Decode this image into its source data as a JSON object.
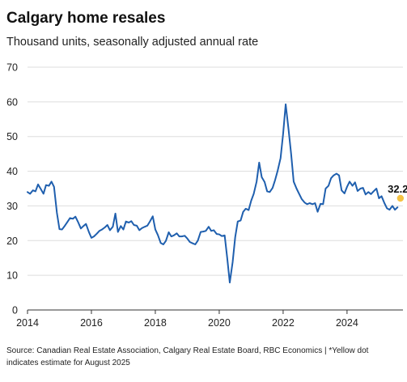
{
  "chart_data": {
    "type": "line",
    "title": "Calgary home resales",
    "subtitle": "Thousand units, seasonally adjusted annual rate",
    "xlabel": "",
    "ylabel": "",
    "xlim": [
      2014,
      2025.75
    ],
    "ylim": [
      0,
      70
    ],
    "x_ticks": [
      "2014",
      "2016",
      "2018",
      "2020",
      "2022",
      "2024"
    ],
    "y_ticks": [
      "0",
      "10",
      "20",
      "30",
      "40",
      "50",
      "60",
      "70"
    ],
    "grid": "horizontal",
    "legend": "none",
    "colors": {
      "line": "#1f5fae",
      "estimate": "#f5c242",
      "grid": "#dddddd",
      "axis": "#333333"
    },
    "series": [
      {
        "points": [
          [
            2014.0,
            34.0
          ],
          [
            2014.08,
            33.5
          ],
          [
            2014.17,
            34.5
          ],
          [
            2014.25,
            34.2
          ],
          [
            2014.33,
            36.2
          ],
          [
            2014.42,
            34.8
          ],
          [
            2014.5,
            33.5
          ],
          [
            2014.58,
            36.0
          ],
          [
            2014.67,
            35.8
          ],
          [
            2014.75,
            37.0
          ],
          [
            2014.83,
            35.5
          ],
          [
            2014.92,
            28.0
          ],
          [
            2015.0,
            23.3
          ],
          [
            2015.08,
            23.2
          ],
          [
            2015.17,
            24.3
          ],
          [
            2015.25,
            25.4
          ],
          [
            2015.33,
            26.5
          ],
          [
            2015.42,
            26.3
          ],
          [
            2015.5,
            26.9
          ],
          [
            2015.58,
            25.4
          ],
          [
            2015.67,
            23.5
          ],
          [
            2015.75,
            24.2
          ],
          [
            2015.83,
            24.8
          ],
          [
            2015.92,
            22.5
          ],
          [
            2016.0,
            20.8
          ],
          [
            2016.08,
            21.2
          ],
          [
            2016.17,
            22.0
          ],
          [
            2016.25,
            22.8
          ],
          [
            2016.33,
            23.2
          ],
          [
            2016.42,
            23.8
          ],
          [
            2016.5,
            24.5
          ],
          [
            2016.58,
            23.0
          ],
          [
            2016.67,
            24.0
          ],
          [
            2016.75,
            27.8
          ],
          [
            2016.83,
            22.5
          ],
          [
            2016.92,
            24.2
          ],
          [
            2017.0,
            23.2
          ],
          [
            2017.08,
            25.5
          ],
          [
            2017.17,
            25.2
          ],
          [
            2017.25,
            25.6
          ],
          [
            2017.33,
            24.5
          ],
          [
            2017.42,
            24.3
          ],
          [
            2017.5,
            23.0
          ],
          [
            2017.58,
            23.6
          ],
          [
            2017.67,
            24.0
          ],
          [
            2017.75,
            24.3
          ],
          [
            2017.83,
            25.5
          ],
          [
            2017.92,
            27.0
          ],
          [
            2018.0,
            23.2
          ],
          [
            2018.08,
            21.6
          ],
          [
            2018.17,
            19.3
          ],
          [
            2018.25,
            18.9
          ],
          [
            2018.33,
            19.9
          ],
          [
            2018.42,
            22.4
          ],
          [
            2018.5,
            21.2
          ],
          [
            2018.58,
            21.5
          ],
          [
            2018.67,
            22.1
          ],
          [
            2018.75,
            21.2
          ],
          [
            2018.83,
            21.2
          ],
          [
            2018.92,
            21.4
          ],
          [
            2019.0,
            20.6
          ],
          [
            2019.08,
            19.6
          ],
          [
            2019.17,
            19.2
          ],
          [
            2019.25,
            18.9
          ],
          [
            2019.33,
            20.0
          ],
          [
            2019.42,
            22.5
          ],
          [
            2019.5,
            22.6
          ],
          [
            2019.58,
            22.8
          ],
          [
            2019.67,
            24.0
          ],
          [
            2019.75,
            22.8
          ],
          [
            2019.83,
            23.0
          ],
          [
            2019.92,
            21.9
          ],
          [
            2020.0,
            21.8
          ],
          [
            2020.08,
            21.3
          ],
          [
            2020.17,
            21.5
          ],
          [
            2020.25,
            15.0
          ],
          [
            2020.33,
            7.9
          ],
          [
            2020.42,
            13.8
          ],
          [
            2020.5,
            21.0
          ],
          [
            2020.58,
            25.5
          ],
          [
            2020.67,
            25.8
          ],
          [
            2020.75,
            28.3
          ],
          [
            2020.83,
            29.2
          ],
          [
            2020.92,
            28.8
          ],
          [
            2021.0,
            31.5
          ],
          [
            2021.08,
            33.5
          ],
          [
            2021.17,
            37.0
          ],
          [
            2021.25,
            42.5
          ],
          [
            2021.33,
            38.3
          ],
          [
            2021.42,
            36.9
          ],
          [
            2021.5,
            34.2
          ],
          [
            2021.58,
            34.0
          ],
          [
            2021.67,
            35.2
          ],
          [
            2021.75,
            37.5
          ],
          [
            2021.83,
            40.2
          ],
          [
            2021.92,
            43.8
          ],
          [
            2022.0,
            50.8
          ],
          [
            2022.08,
            59.3
          ],
          [
            2022.17,
            52.0
          ],
          [
            2022.25,
            45.0
          ],
          [
            2022.33,
            37.0
          ],
          [
            2022.42,
            35.0
          ],
          [
            2022.5,
            33.5
          ],
          [
            2022.58,
            32.0
          ],
          [
            2022.67,
            31.0
          ],
          [
            2022.75,
            30.5
          ],
          [
            2022.83,
            30.8
          ],
          [
            2022.92,
            30.5
          ],
          [
            2023.0,
            30.8
          ],
          [
            2023.08,
            28.3
          ],
          [
            2023.17,
            30.6
          ],
          [
            2023.25,
            30.5
          ],
          [
            2023.33,
            35.0
          ],
          [
            2023.42,
            35.8
          ],
          [
            2023.5,
            38.0
          ],
          [
            2023.58,
            38.8
          ],
          [
            2023.67,
            39.3
          ],
          [
            2023.75,
            38.8
          ],
          [
            2023.83,
            34.5
          ],
          [
            2023.92,
            33.6
          ],
          [
            2024.0,
            35.5
          ],
          [
            2024.08,
            37.0
          ],
          [
            2024.17,
            35.8
          ],
          [
            2024.25,
            36.8
          ],
          [
            2024.33,
            34.3
          ],
          [
            2024.42,
            35.0
          ],
          [
            2024.5,
            35.2
          ],
          [
            2024.58,
            33.3
          ],
          [
            2024.67,
            34.0
          ],
          [
            2024.75,
            33.4
          ],
          [
            2024.83,
            34.2
          ],
          [
            2024.92,
            35.0
          ],
          [
            2025.0,
            32.2
          ],
          [
            2025.08,
            32.8
          ],
          [
            2025.17,
            30.8
          ],
          [
            2025.25,
            29.3
          ],
          [
            2025.33,
            28.9
          ],
          [
            2025.42,
            30.0
          ],
          [
            2025.5,
            28.9
          ],
          [
            2025.58,
            29.6
          ]
        ]
      }
    ],
    "estimate": {
      "x": 2025.67,
      "y": 32.2,
      "label": "32.2"
    },
    "source": "Source: Canadian Real Estate Association, Calgary Real Estate Board, RBC Economics | *Yellow dot indicates estimate for August 2025"
  }
}
